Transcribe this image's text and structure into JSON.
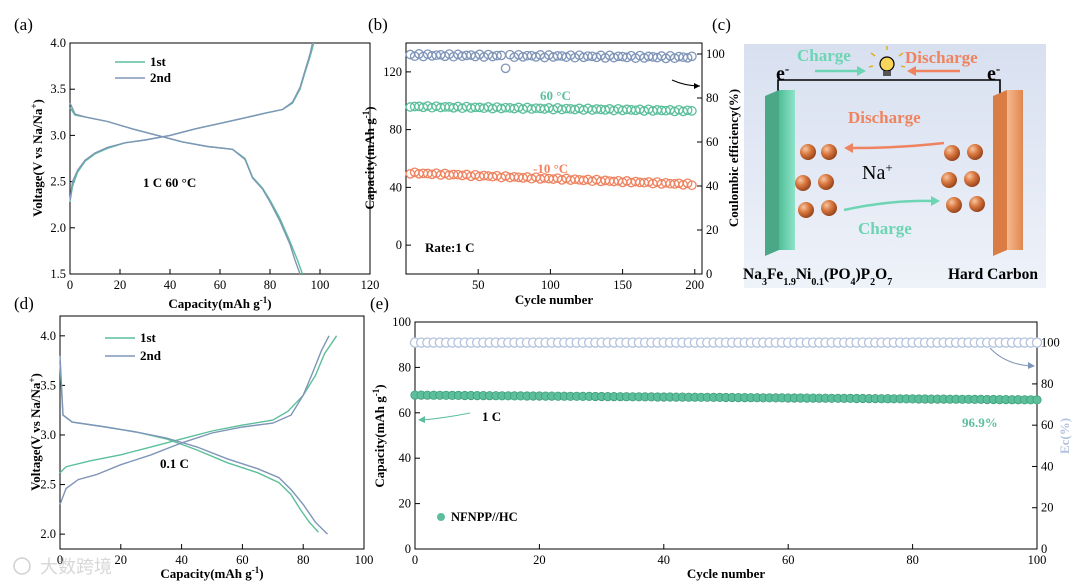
{
  "panel_labels": [
    "(a)",
    "(b)",
    "(c)",
    "(d)",
    "(e)"
  ],
  "watermark": "大数跨境",
  "colors": {
    "teal": "#5cbf9b",
    "teal_dark": "#3f9e7c",
    "blue_gray": "#7f95b8",
    "coral": "#ef8360",
    "pale_blue": "#b3c2dd",
    "cathode": "#6dd5b4",
    "anode": "#f2a473"
  },
  "schematic": {
    "electron_left": "e",
    "electron_right": "e",
    "electron_sup": "-",
    "charge_top": "Charge",
    "discharge_top": "Discharge",
    "discharge_mid": "Discharge",
    "charge_bottom": "Charge",
    "ion": "Na",
    "ion_sup": "+",
    "cathode_parts": [
      {
        "t": "Na",
        "sub": false
      },
      {
        "t": "3",
        "sub": true
      },
      {
        "t": "Fe",
        "sub": false
      },
      {
        "t": "1.9",
        "sub": true
      },
      {
        "t": "Ni",
        "sub": false
      },
      {
        "t": "0.1",
        "sub": true
      },
      {
        "t": "(PO",
        "sub": false
      },
      {
        "t": "4",
        "sub": true
      },
      {
        "t": ")P",
        "sub": false
      },
      {
        "t": "2",
        "sub": true
      },
      {
        "t": "O",
        "sub": false
      },
      {
        "t": "7",
        "sub": true
      }
    ],
    "anode": "Hard Carbon"
  },
  "chart_data": [
    {
      "id": "a",
      "type": "line",
      "xlabel": "Capacity(mAh g",
      "xlabel_sup": "-1",
      "xlabel_end": ")",
      "ylabel": "Voltage(V vs Na/Na",
      "ylabel_sup": "+",
      "ylabel_end": ")",
      "xlim": [
        0,
        120
      ],
      "ylim": [
        1.5,
        4.0
      ],
      "xticks": [
        0,
        20,
        40,
        60,
        80,
        100,
        120
      ],
      "yticks": [
        1.5,
        2.0,
        2.5,
        3.0,
        3.5,
        4.0
      ],
      "annotation": "1 C 60 °C",
      "series": [
        {
          "name": "1st",
          "color": "#5cbf9b",
          "charge": [
            [
              0,
              2.28
            ],
            [
              1,
              2.45
            ],
            [
              3,
              2.6
            ],
            [
              6,
              2.72
            ],
            [
              10,
              2.8
            ],
            [
              15,
              2.86
            ],
            [
              22,
              2.92
            ],
            [
              30,
              2.95
            ],
            [
              40,
              3.0
            ],
            [
              50,
              3.07
            ],
            [
              60,
              3.13
            ],
            [
              70,
              3.19
            ],
            [
              78,
              3.24
            ],
            [
              85,
              3.28
            ],
            [
              89,
              3.35
            ],
            [
              92,
              3.5
            ],
            [
              94,
              3.68
            ],
            [
              96,
              3.85
            ],
            [
              97.5,
              4.0
            ]
          ],
          "discharge": [
            [
              0,
              3.3
            ],
            [
              2,
              3.22
            ],
            [
              6,
              3.2
            ],
            [
              15,
              3.15
            ],
            [
              25,
              3.07
            ],
            [
              35,
              3.0
            ],
            [
              45,
              2.93
            ],
            [
              55,
              2.88
            ],
            [
              65,
              2.85
            ],
            [
              70,
              2.75
            ],
            [
              73,
              2.55
            ],
            [
              77,
              2.43
            ],
            [
              80,
              2.3
            ],
            [
              84,
              2.1
            ],
            [
              88,
              1.85
            ],
            [
              91,
              1.65
            ],
            [
              93,
              1.5
            ]
          ]
        },
        {
          "name": "2nd",
          "color": "#7f95b8",
          "charge": [
            [
              0,
              2.3
            ],
            [
              1,
              2.5
            ],
            [
              3,
              2.62
            ],
            [
              6,
              2.73
            ],
            [
              10,
              2.81
            ],
            [
              15,
              2.87
            ],
            [
              22,
              2.92
            ],
            [
              30,
              2.95
            ],
            [
              40,
              3.0
            ],
            [
              50,
              3.07
            ],
            [
              60,
              3.13
            ],
            [
              70,
              3.19
            ],
            [
              78,
              3.24
            ],
            [
              85,
              3.28
            ],
            [
              89,
              3.36
            ],
            [
              92,
              3.52
            ],
            [
              94,
              3.7
            ],
            [
              96,
              3.88
            ],
            [
              97,
              4.0
            ]
          ],
          "discharge": [
            [
              0,
              3.35
            ],
            [
              2,
              3.23
            ],
            [
              6,
              3.2
            ],
            [
              15,
              3.15
            ],
            [
              25,
              3.07
            ],
            [
              35,
              3.0
            ],
            [
              45,
              2.93
            ],
            [
              55,
              2.88
            ],
            [
              65,
              2.85
            ],
            [
              70,
              2.74
            ],
            [
              73,
              2.54
            ],
            [
              77,
              2.42
            ],
            [
              80,
              2.28
            ],
            [
              84,
              2.07
            ],
            [
              88,
              1.82
            ],
            [
              90,
              1.65
            ],
            [
              92,
              1.5
            ]
          ]
        }
      ]
    },
    {
      "id": "b",
      "type": "scatter",
      "xlabel": "Cycle number",
      "ylabel": "Capacity(mAh g",
      "ylabel_sup": "-1",
      "ylabel_end": ")",
      "y2label": "Coulombic efficiency(%)",
      "xlim": [
        0,
        205
      ],
      "ylim": [
        -20,
        140
      ],
      "y2lim": [
        0,
        105
      ],
      "xticks": [
        50,
        100,
        150,
        200
      ],
      "yticks": [
        0,
        40,
        80,
        120
      ],
      "y2ticks": [
        0,
        20,
        40,
        60,
        80,
        100
      ],
      "label_60": "60 °C",
      "label_m10": "-10 °C",
      "rate_label": "Rate:1 C",
      "series": [
        {
          "name": "Coulombic efficiency",
          "axis": "y2",
          "color": "#7f95b8",
          "start": 99.5,
          "end": 98.5,
          "dip": [
            70,
            93.5
          ]
        },
        {
          "name": "60 °C",
          "axis": "y",
          "color": "#5cbf9b",
          "start": 96,
          "end": 93,
          "dip": null
        },
        {
          "name": "-10 °C",
          "axis": "y",
          "color": "#ef8360",
          "start": 50,
          "end": 42,
          "dip": null
        }
      ],
      "cycles_start": 3,
      "cycles_end": 200,
      "cycles_step": 3
    },
    {
      "id": "d",
      "type": "line",
      "xlabel": "Capacity(mAh g",
      "xlabel_sup": "-1",
      "xlabel_end": ")",
      "ylabel": "Voltage(V vs Na/Na",
      "ylabel_sup": "+",
      "ylabel_end": ")",
      "xlim": [
        0,
        100
      ],
      "ylim": [
        1.85,
        4.2
      ],
      "xticks": [
        0,
        20,
        40,
        60,
        80,
        100
      ],
      "yticks": [
        2.0,
        2.5,
        3.0,
        3.5,
        4.0
      ],
      "annotation": "0.1 C",
      "series": [
        {
          "name": "1st",
          "color": "#5cbf9b",
          "charge": [
            [
              0,
              2.62
            ],
            [
              2,
              2.68
            ],
            [
              10,
              2.74
            ],
            [
              20,
              2.8
            ],
            [
              30,
              2.88
            ],
            [
              40,
              2.96
            ],
            [
              50,
              3.04
            ],
            [
              60,
              3.1
            ],
            [
              70,
              3.15
            ],
            [
              75,
              3.24
            ],
            [
              80,
              3.4
            ],
            [
              84,
              3.6
            ],
            [
              87,
              3.82
            ],
            [
              91,
              4.0
            ]
          ],
          "discharge": [
            [
              0,
              3.72
            ],
            [
              1,
              3.2
            ],
            [
              4,
              3.13
            ],
            [
              15,
              3.08
            ],
            [
              25,
              3.03
            ],
            [
              35,
              2.96
            ],
            [
              45,
              2.85
            ],
            [
              55,
              2.72
            ],
            [
              65,
              2.62
            ],
            [
              72,
              2.52
            ],
            [
              76,
              2.4
            ],
            [
              79,
              2.25
            ],
            [
              82,
              2.12
            ],
            [
              85,
              2.02
            ]
          ]
        },
        {
          "name": "2nd",
          "color": "#7f95b8",
          "charge": [
            [
              0,
              2.3
            ],
            [
              2,
              2.46
            ],
            [
              6,
              2.55
            ],
            [
              12,
              2.6
            ],
            [
              20,
              2.7
            ],
            [
              30,
              2.8
            ],
            [
              40,
              2.92
            ],
            [
              50,
              3.02
            ],
            [
              60,
              3.08
            ],
            [
              70,
              3.12
            ],
            [
              76,
              3.2
            ],
            [
              80,
              3.4
            ],
            [
              83,
              3.62
            ],
            [
              86,
              3.85
            ],
            [
              88.5,
              4.0
            ]
          ],
          "discharge": [
            [
              0,
              3.8
            ],
            [
              1,
              3.2
            ],
            [
              4,
              3.13
            ],
            [
              15,
              3.08
            ],
            [
              25,
              3.03
            ],
            [
              35,
              2.97
            ],
            [
              45,
              2.88
            ],
            [
              55,
              2.76
            ],
            [
              65,
              2.66
            ],
            [
              72,
              2.57
            ],
            [
              76,
              2.45
            ],
            [
              80,
              2.3
            ],
            [
              84,
              2.12
            ],
            [
              88,
              2.0
            ]
          ]
        }
      ]
    },
    {
      "id": "e",
      "type": "scatter",
      "xlabel": "Cycle number",
      "ylabel": "Capacity(mAh g",
      "ylabel_sup": "-1",
      "ylabel_end": ")",
      "y2label": "Ec(%)",
      "xlim": [
        0,
        100
      ],
      "ylim": [
        0,
        100
      ],
      "y2lim": [
        0,
        110
      ],
      "xticks": [
        0,
        20,
        40,
        60,
        80,
        100
      ],
      "yticks": [
        0,
        20,
        40,
        60,
        80,
        100
      ],
      "y2ticks": [
        0,
        20,
        40,
        60,
        80,
        100
      ],
      "rate_label": "1 C",
      "retention_label": "96.9%",
      "legend": "NFNPP//HC",
      "series": [
        {
          "name": "Ec",
          "axis": "y2",
          "color": "#b3c2dd",
          "start": 100,
          "end": 100
        },
        {
          "name": "NFNPP//HC",
          "axis": "y",
          "color": "#5cbf9b",
          "start": 67.8,
          "end": 65.7
        }
      ],
      "cycles_start": 0,
      "cycles_end": 100,
      "cycles_step": 1
    }
  ]
}
